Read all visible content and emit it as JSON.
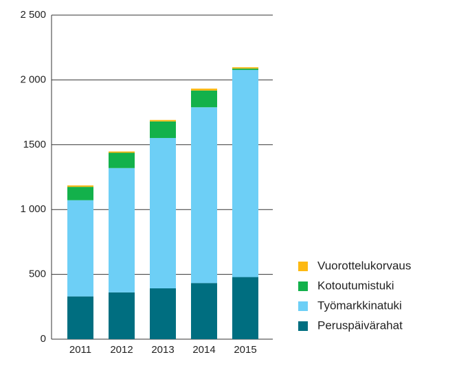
{
  "chart_data": {
    "type": "stacked_bar",
    "categories": [
      "2011",
      "2012",
      "2013",
      "2014",
      "2015"
    ],
    "series": [
      {
        "name": "Peruspäivärahat",
        "color": "#006e80",
        "values": [
          330,
          361,
          392,
          433,
          479
        ]
      },
      {
        "name": "Työmarkkinatuki",
        "color": "#6dcff6",
        "values": [
          742,
          959,
          1160,
          1356,
          1598
        ]
      },
      {
        "name": "Kotoutumistuki",
        "color": "#13b14b",
        "values": [
          103,
          118,
          128,
          129,
          11
        ]
      },
      {
        "name": "Vuorottelukorvaus",
        "color": "#fdb913",
        "values": [
          11,
          10,
          11,
          15,
          10
        ]
      }
    ],
    "ylim": [
      0,
      2500
    ],
    "yticks": [
      0,
      500,
      {
        "value": 1000,
        "label": "1 000"
      },
      1500,
      {
        "value": 2000,
        "label": "2 000"
      },
      {
        "value": 2500,
        "label": "2 500"
      }
    ],
    "grid": true
  }
}
